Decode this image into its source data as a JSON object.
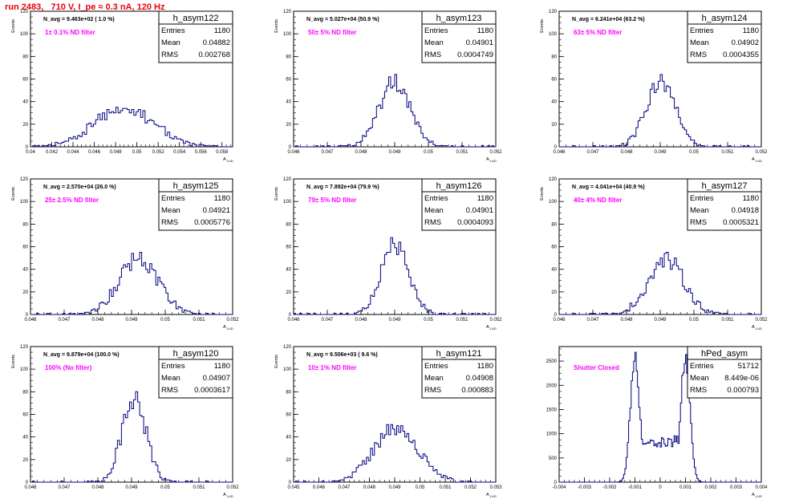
{
  "run_title": "run 2483,   710 V, I_pe ≈ 0.3 nA, 120 Hz",
  "colors": {
    "hist": "#000080",
    "label": "#ff00ff",
    "title": "#e8000b"
  },
  "chart_data": [
    {
      "type": "bar",
      "name": "h_asym122",
      "stat": {
        "entries": "1180",
        "mean": "0.04882",
        "rms": "0.002768"
      },
      "navg_text": "N_avg = 9.463e+02 ( 1.0 %)",
      "filter_text": "1± 0.1% ND filter",
      "ylabel": "Events",
      "xlabel": "A",
      "xlim": [
        0.04,
        0.059
      ],
      "ylim": [
        0,
        120
      ],
      "xticks": [
        "0.04",
        "0.042",
        "0.044",
        "0.046",
        "0.048",
        "0.05",
        "0.052",
        "0.054",
        "0.056",
        "0.058"
      ],
      "yticks": [
        "0",
        "20",
        "40",
        "60",
        "80",
        "100",
        "120"
      ],
      "hist": {
        "mean": 0.04882,
        "rms": 0.002768,
        "peak": 41,
        "nbins": 90,
        "seed": 122
      }
    },
    {
      "type": "bar",
      "name": "h_asym123",
      "stat": {
        "entries": "1180",
        "mean": "0.04901",
        "rms": "0.0004749"
      },
      "navg_text": "N_avg = 5.027e+04 (50.9 %)",
      "filter_text": "50± 5% ND filter",
      "ylabel": "Events",
      "xlabel": "A",
      "xlim": [
        0.046,
        0.052
      ],
      "ylim": [
        0,
        120
      ],
      "xticks": [
        "0.046",
        "0.047",
        "0.048",
        "0.049",
        "0.05",
        "0.051",
        "0.052"
      ],
      "yticks": [
        "0",
        "20",
        "40",
        "60",
        "80",
        "100",
        "120"
      ],
      "hist": {
        "mean": 0.04901,
        "rms": 0.0004749,
        "peak": 68,
        "nbins": 100,
        "seed": 123
      }
    },
    {
      "type": "bar",
      "name": "h_asym124",
      "stat": {
        "entries": "1180",
        "mean": "0.04902",
        "rms": "0.0004355"
      },
      "navg_text": "N_avg = 6.241e+04 (63.2 %)",
      "filter_text": "63± 5% ND filter",
      "ylabel": "Events",
      "xlabel": "A",
      "xlim": [
        0.046,
        0.052
      ],
      "ylim": [
        0,
        120
      ],
      "xticks": [
        "0.046",
        "0.047",
        "0.048",
        "0.049",
        "0.05",
        "0.051",
        "0.052"
      ],
      "yticks": [
        "0",
        "20",
        "40",
        "60",
        "80",
        "100",
        "120"
      ],
      "hist": {
        "mean": 0.04902,
        "rms": 0.0004355,
        "peak": 67,
        "nbins": 100,
        "seed": 124
      }
    },
    {
      "type": "bar",
      "name": "h_asym125",
      "stat": {
        "entries": "1180",
        "mean": "0.04921",
        "rms": "0.0005776"
      },
      "navg_text": "N_avg = 2.570e+04 (26.0 %)",
      "filter_text": "25± 2.5% ND filter",
      "ylabel": "Events",
      "xlabel": "A",
      "xlim": [
        0.046,
        0.052
      ],
      "ylim": [
        0,
        120
      ],
      "xticks": [
        "0.046",
        "0.047",
        "0.048",
        "0.049",
        "0.05",
        "0.051",
        "0.052"
      ],
      "yticks": [
        "0",
        "20",
        "40",
        "60",
        "80",
        "100",
        "120"
      ],
      "hist": {
        "mean": 0.04921,
        "rms": 0.0005776,
        "peak": 58,
        "nbins": 100,
        "seed": 125
      }
    },
    {
      "type": "bar",
      "name": "h_asym126",
      "stat": {
        "entries": "1180",
        "mean": "0.04901",
        "rms": "0.0004093"
      },
      "navg_text": "N_avg = 7.892e+04 (79.9 %)",
      "filter_text": "79± 5% ND filter",
      "ylabel": "Events",
      "xlabel": "A",
      "xlim": [
        0.046,
        0.052
      ],
      "ylim": [
        0,
        120
      ],
      "xticks": [
        "0.046",
        "0.047",
        "0.048",
        "0.049",
        "0.05",
        "0.051",
        "0.052"
      ],
      "yticks": [
        "0",
        "20",
        "40",
        "60",
        "80",
        "100",
        "120"
      ],
      "hist": {
        "mean": 0.04901,
        "rms": 0.0004093,
        "peak": 73,
        "nbins": 100,
        "seed": 126
      }
    },
    {
      "type": "bar",
      "name": "h_asym127",
      "stat": {
        "entries": "1180",
        "mean": "0.04918",
        "rms": "0.0005321"
      },
      "navg_text": "N_avg = 4.041e+04 (40.9 %)",
      "filter_text": "40± 4% ND filter",
      "ylabel": "Events",
      "xlabel": "A",
      "xlim": [
        0.046,
        0.052
      ],
      "ylim": [
        0,
        120
      ],
      "xticks": [
        "0.046",
        "0.047",
        "0.048",
        "0.049",
        "0.05",
        "0.051",
        "0.052"
      ],
      "yticks": [
        "0",
        "20",
        "40",
        "60",
        "80",
        "100",
        "120"
      ],
      "hist": {
        "mean": 0.04918,
        "rms": 0.0005321,
        "peak": 57,
        "nbins": 100,
        "seed": 127
      }
    },
    {
      "type": "bar",
      "name": "h_asym120",
      "stat": {
        "entries": "1180",
        "mean": "0.04907",
        "rms": "0.0003617"
      },
      "navg_text": "N_avg = 9.879e+04 (100.0 %)",
      "filter_text": "100% (No filter)",
      "ylabel": "Events",
      "xlabel": "A",
      "xlim": [
        0.046,
        0.052
      ],
      "ylim": [
        0,
        120
      ],
      "xticks": [
        "0.046",
        "0.047",
        "0.048",
        "0.049",
        "0.05",
        "0.051",
        "0.052"
      ],
      "yticks": [
        "0",
        "20",
        "40",
        "60",
        "80",
        "100",
        "120"
      ],
      "hist": {
        "mean": 0.04907,
        "rms": 0.0003617,
        "peak": 86,
        "nbins": 100,
        "seed": 120
      }
    },
    {
      "type": "bar",
      "name": "h_asym121",
      "stat": {
        "entries": "1180",
        "mean": "0.04908",
        "rms": "0.000883"
      },
      "navg_text": "N_avg = 9.506e+03 ( 9.6 %)",
      "filter_text": "10± 1% ND filter",
      "ylabel": "Events",
      "xlabel": "A",
      "xlim": [
        0.045,
        0.053
      ],
      "ylim": [
        0,
        120
      ],
      "xticks": [
        "0.045",
        "0.046",
        "0.047",
        "0.048",
        "0.049",
        "0.05",
        "0.051",
        "0.052",
        "0.053"
      ],
      "yticks": [
        "0",
        "20",
        "40",
        "60",
        "80",
        "100",
        "120"
      ],
      "hist": {
        "mean": 0.04908,
        "rms": 0.000883,
        "peak": 57,
        "nbins": 100,
        "seed": 121
      }
    },
    {
      "type": "bar",
      "name": "hPed_asym",
      "stat": {
        "entries": "51712",
        "mean": "8.449e-06",
        "rms": "0.000793"
      },
      "navg_text": "",
      "filter_text": "Shutter Closed",
      "ylabel": "",
      "xlabel": "A",
      "xlim": [
        -0.004,
        0.004
      ],
      "ylim": [
        0,
        2800
      ],
      "xticks": [
        "-0.004",
        "-0.003",
        "-0.002",
        "-0.001",
        "0",
        "0.001",
        "0.002",
        "0.003",
        "0.004"
      ],
      "yticks": [
        "0",
        "500",
        "1000",
        "1500",
        "2000",
        "2500"
      ],
      "hist": {
        "bimodal": true,
        "peaks": [
          -0.001,
          0.001
        ],
        "peak": 2650,
        "valley": 840,
        "nbins": 160,
        "seed": 200
      }
    }
  ]
}
